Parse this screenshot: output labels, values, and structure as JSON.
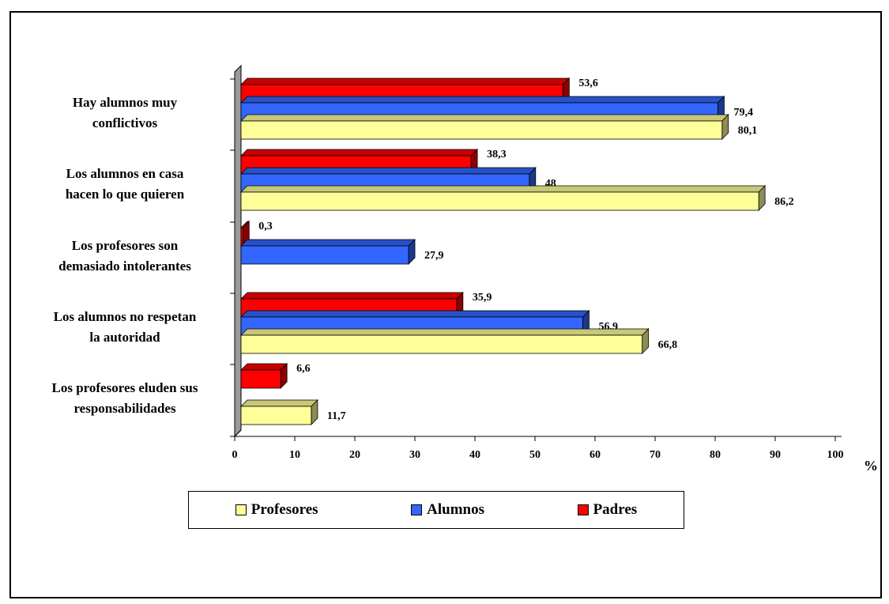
{
  "chart_data": {
    "type": "bar",
    "orientation": "horizontal",
    "style": "3d",
    "categories": [
      [
        "Hay alumnos muy",
        "conflictivos"
      ],
      [
        "Los alumnos en casa",
        "hacen lo que quieren"
      ],
      [
        "Los profesores son",
        "demasiado intolerantes"
      ],
      [
        "Los alumnos no respetan",
        "la autoridad"
      ],
      [
        "Los profesores eluden sus",
        "responsabilidades"
      ]
    ],
    "series": [
      {
        "name": "Padres",
        "color": "#ff0000",
        "values": [
          53.6,
          38.3,
          0.3,
          35.9,
          6.6
        ],
        "labels": [
          "53,6",
          "38,3",
          "0,3",
          "35,9",
          "6,6"
        ]
      },
      {
        "name": "Alumnos",
        "color": "#3366ff",
        "values": [
          79.4,
          48,
          27.9,
          56.9,
          null
        ],
        "labels": [
          "79,4",
          "48",
          "27,9",
          "56,9",
          ""
        ]
      },
      {
        "name": "Profesores",
        "color": "#ffff99",
        "values": [
          80.1,
          86.2,
          null,
          66.8,
          11.7
        ],
        "labels": [
          "80,1",
          "86,2",
          "",
          "66,8",
          "11,7"
        ]
      }
    ],
    "xlim": [
      0,
      100
    ],
    "xticks": [
      "0",
      "10",
      "20",
      "30",
      "40",
      "50",
      "60",
      "70",
      "80",
      "90",
      "100"
    ],
    "xlabel": "%",
    "legend_position": "bottom",
    "legend_order": [
      "Profesores",
      "Alumnos",
      "Padres"
    ],
    "grid": false
  }
}
